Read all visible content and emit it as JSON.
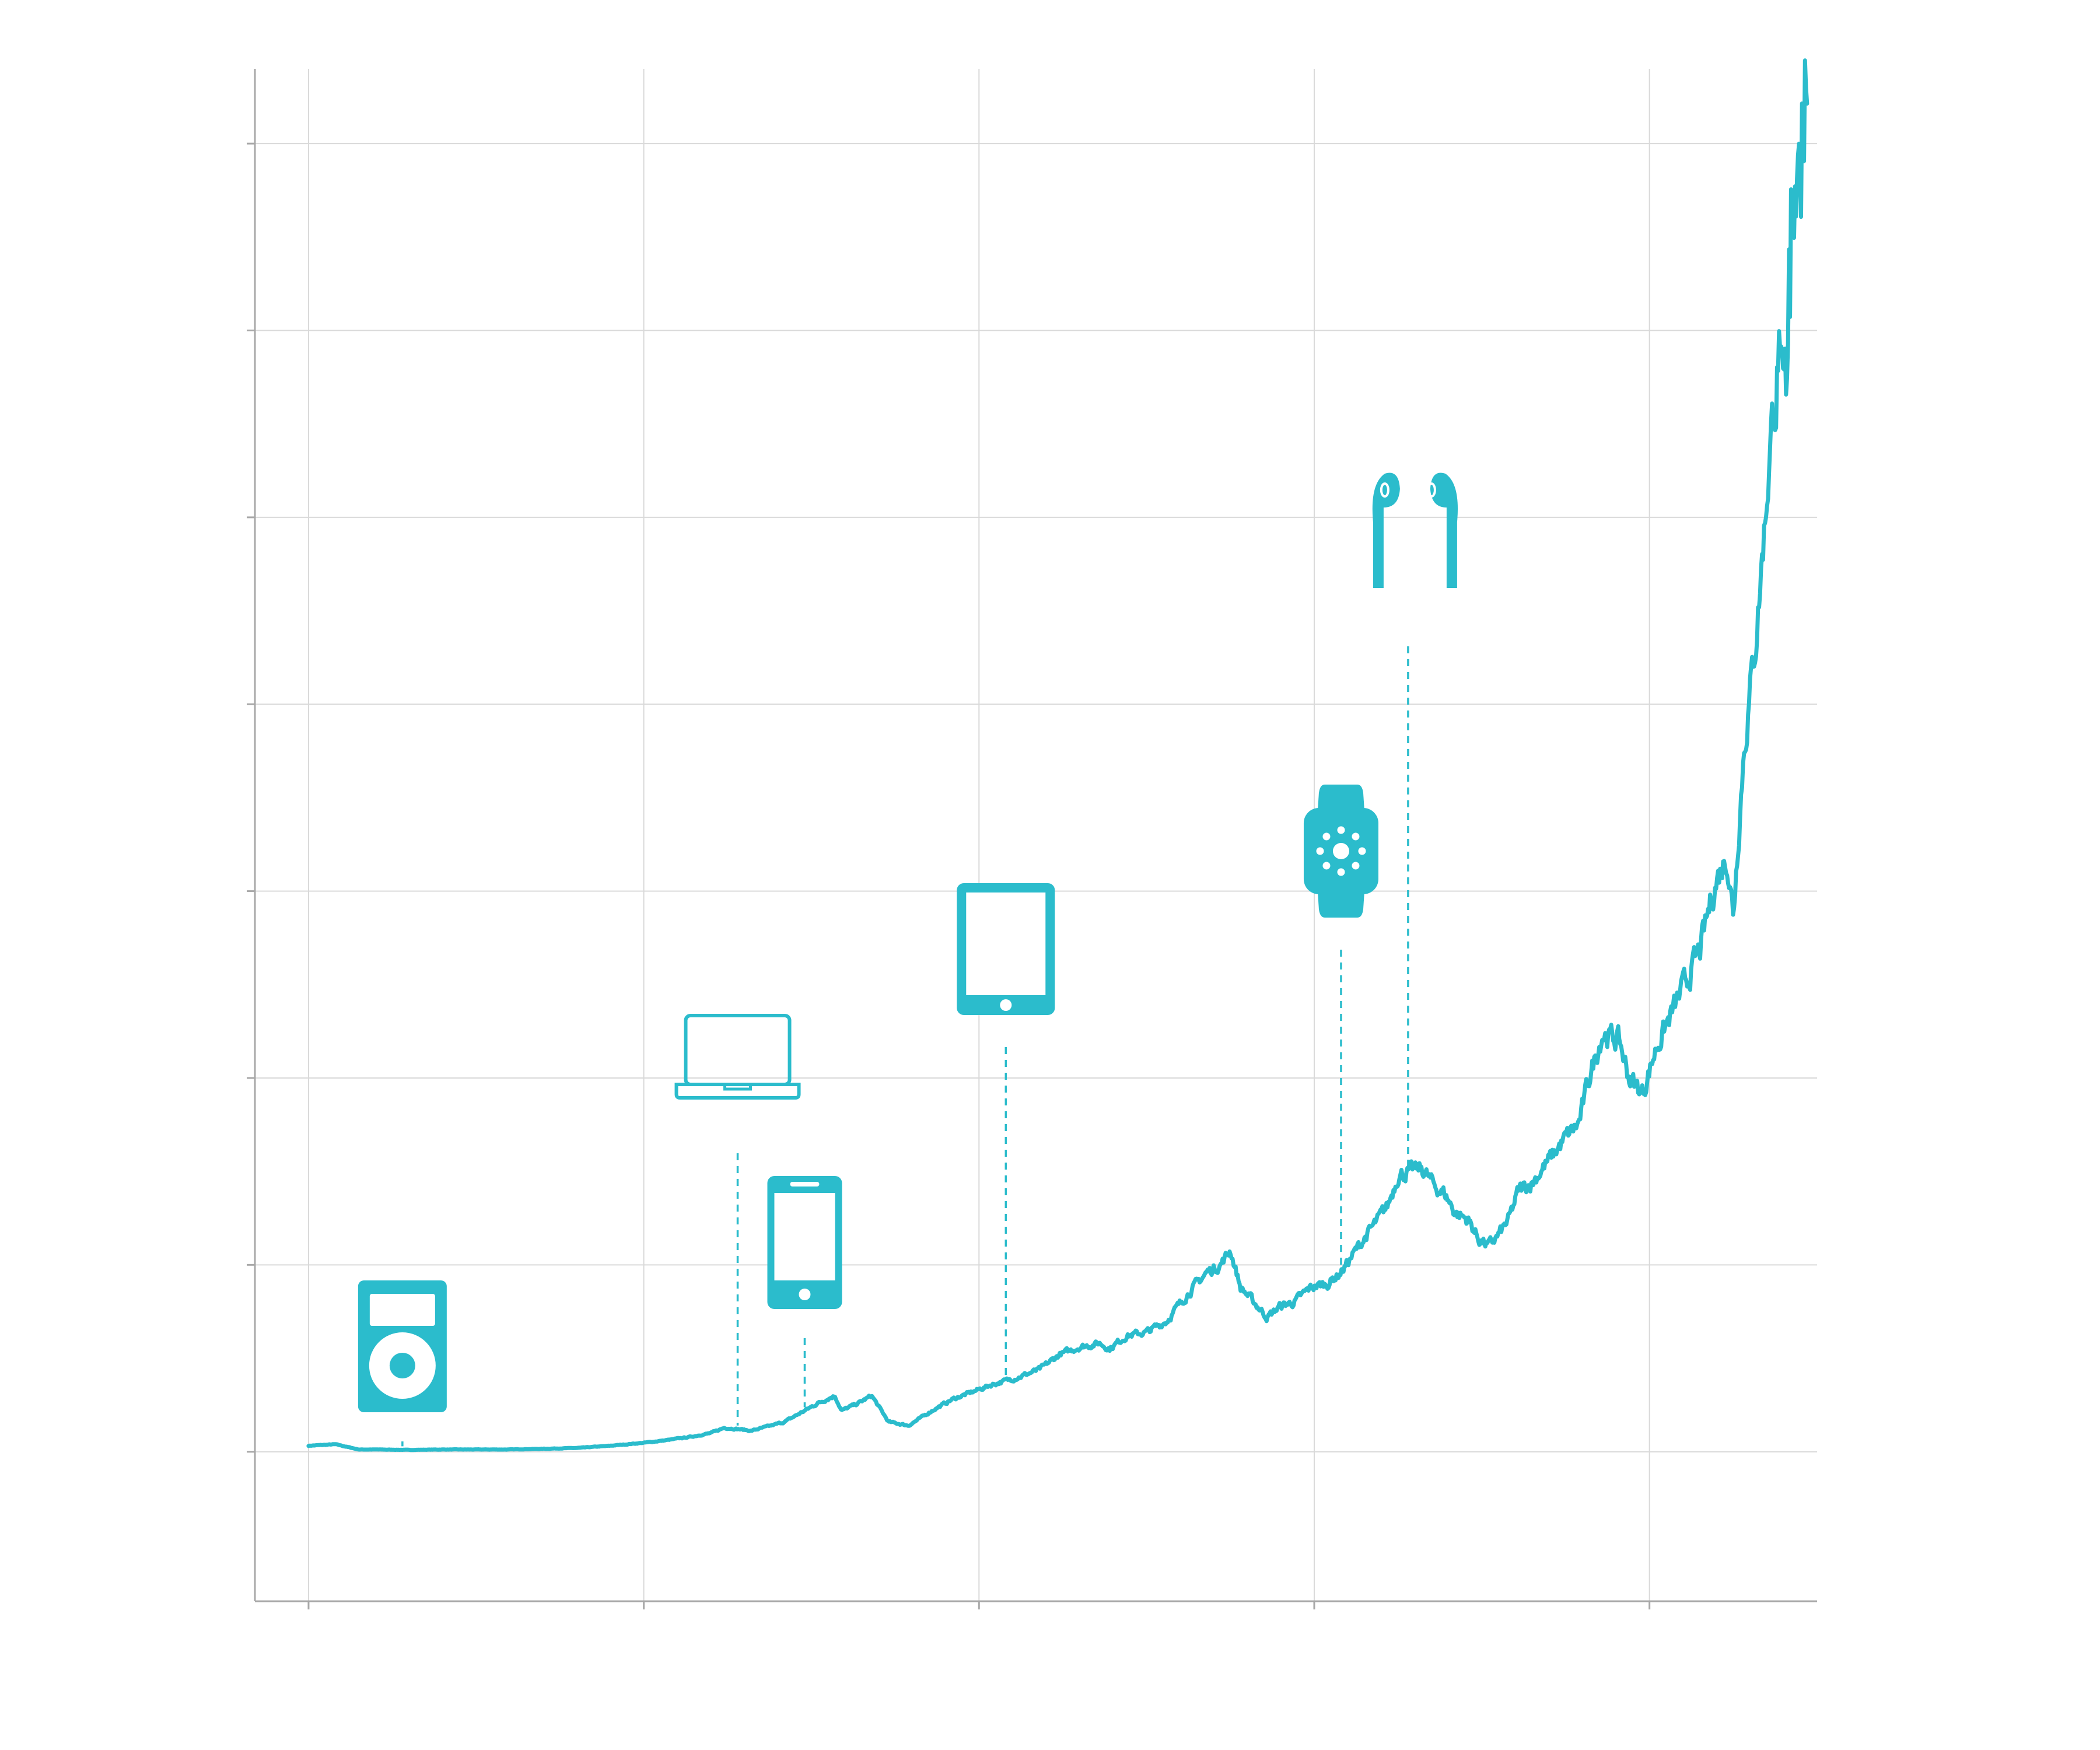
{
  "colors": {
    "accent": "#2bbccc",
    "grid": "#d9d9d9",
    "axis": "#a8a8a8",
    "background": "#ffffff"
  },
  "chart_data": {
    "type": "line",
    "title": "",
    "xlabel": "",
    "ylabel": "",
    "xlim": [
      2000.2,
      2023.5
    ],
    "ylim": [
      -20,
      185
    ],
    "grid": true,
    "x_gridlines": [
      2001,
      2006,
      2011,
      2016,
      2021
    ],
    "y_gridlines": [
      0,
      25,
      50,
      75,
      100,
      125,
      150,
      175
    ],
    "series": [
      {
        "points": [
          [
            2001.0,
            0.8
          ],
          [
            2001.4,
            1.0
          ],
          [
            2001.75,
            0.3
          ],
          [
            2002.0,
            0.3
          ],
          [
            2002.5,
            0.25
          ],
          [
            2003.0,
            0.3
          ],
          [
            2003.5,
            0.3
          ],
          [
            2004.0,
            0.3
          ],
          [
            2004.5,
            0.4
          ],
          [
            2005.0,
            0.5
          ],
          [
            2005.5,
            0.8
          ],
          [
            2006.0,
            1.2
          ],
          [
            2006.3,
            1.5
          ],
          [
            2006.7,
            2.0
          ],
          [
            2007.0,
            2.5
          ],
          [
            2007.2,
            3.2
          ],
          [
            2007.45,
            3.0
          ],
          [
            2007.6,
            2.8
          ],
          [
            2007.9,
            3.5
          ],
          [
            2008.1,
            4.0
          ],
          [
            2008.4,
            5.5
          ],
          [
            2008.6,
            6.5
          ],
          [
            2008.85,
            7.5
          ],
          [
            2008.95,
            5.5
          ],
          [
            2009.2,
            6.5
          ],
          [
            2009.4,
            7.5
          ],
          [
            2009.65,
            4.0
          ],
          [
            2009.95,
            3.5
          ],
          [
            2010.3,
            5.5
          ],
          [
            2010.6,
            7.0
          ],
          [
            2010.9,
            8.0
          ],
          [
            2011.2,
            9.0
          ],
          [
            2011.4,
            9.5
          ],
          [
            2011.6,
            10.0
          ],
          [
            2011.9,
            11.0
          ],
          [
            2012.2,
            13.0
          ],
          [
            2012.5,
            14.0
          ],
          [
            2012.8,
            14.5
          ],
          [
            2012.95,
            13.8
          ],
          [
            2013.2,
            15.5
          ],
          [
            2013.5,
            16.0
          ],
          [
            2013.8,
            17.5
          ],
          [
            2014.1,
            21.0
          ],
          [
            2014.4,
            24.0
          ],
          [
            2014.6,
            25.0
          ],
          [
            2014.75,
            27.0
          ],
          [
            2014.9,
            22.0
          ],
          [
            2015.1,
            20.0
          ],
          [
            2015.3,
            18.0
          ],
          [
            2015.5,
            19.5
          ],
          [
            2015.7,
            20.0
          ],
          [
            2015.95,
            22.0
          ],
          [
            2016.2,
            22.5
          ],
          [
            2016.4,
            24.0
          ],
          [
            2016.7,
            28.0
          ],
          [
            2016.95,
            31.0
          ],
          [
            2017.1,
            33.0
          ],
          [
            2017.25,
            37.0
          ],
          [
            2017.45,
            37.5
          ],
          [
            2017.6,
            38.0
          ],
          [
            2017.8,
            35.5
          ],
          [
            2017.95,
            34.5
          ],
          [
            2018.1,
            32.0
          ],
          [
            2018.3,
            31.0
          ],
          [
            2018.45,
            28.5
          ],
          [
            2018.6,
            27.5
          ],
          [
            2018.75,
            29.0
          ],
          [
            2018.9,
            31.0
          ],
          [
            2019.05,
            35.0
          ],
          [
            2019.25,
            36.0
          ],
          [
            2019.5,
            39.0
          ],
          [
            2019.75,
            42.0
          ],
          [
            2019.95,
            44.0
          ],
          [
            2020.1,
            50.0
          ],
          [
            2020.3,
            56.0
          ],
          [
            2020.55,
            55.0
          ],
          [
            2020.7,
            50.0
          ],
          [
            2020.9,
            48.0
          ],
          [
            2021.1,
            54.0
          ],
          [
            2021.3,
            58.0
          ],
          [
            2021.5,
            62.0
          ],
          [
            2021.75,
            67.0
          ],
          [
            2021.95,
            75.0
          ],
          [
            2022.15,
            80.0
          ],
          [
            2022.25,
            72.0
          ],
          [
            2022.4,
            93.0
          ],
          [
            2022.6,
            110.0
          ],
          [
            2022.85,
            140.0
          ],
          [
            2022.95,
            142.0
          ],
          [
            2023.05,
            150.0
          ],
          [
            2023.15,
            168.0
          ],
          [
            2023.25,
            176.0
          ],
          [
            2023.3,
            179.0
          ],
          [
            2023.35,
            180.0
          ]
        ]
      }
    ],
    "annotations": [
      {
        "icon": "ipod-icon",
        "x": 2002.4,
        "text": ""
      },
      {
        "icon": "laptop-icon",
        "x": 2007.4,
        "text": ""
      },
      {
        "icon": "smartphone-icon",
        "x": 2008.4,
        "text": ""
      },
      {
        "icon": "tablet-icon",
        "x": 2011.4,
        "text": ""
      },
      {
        "icon": "smartwatch-icon",
        "x": 2016.4,
        "text": ""
      },
      {
        "icon": "earbuds-icon",
        "x": 2017.4,
        "text": ""
      }
    ]
  }
}
